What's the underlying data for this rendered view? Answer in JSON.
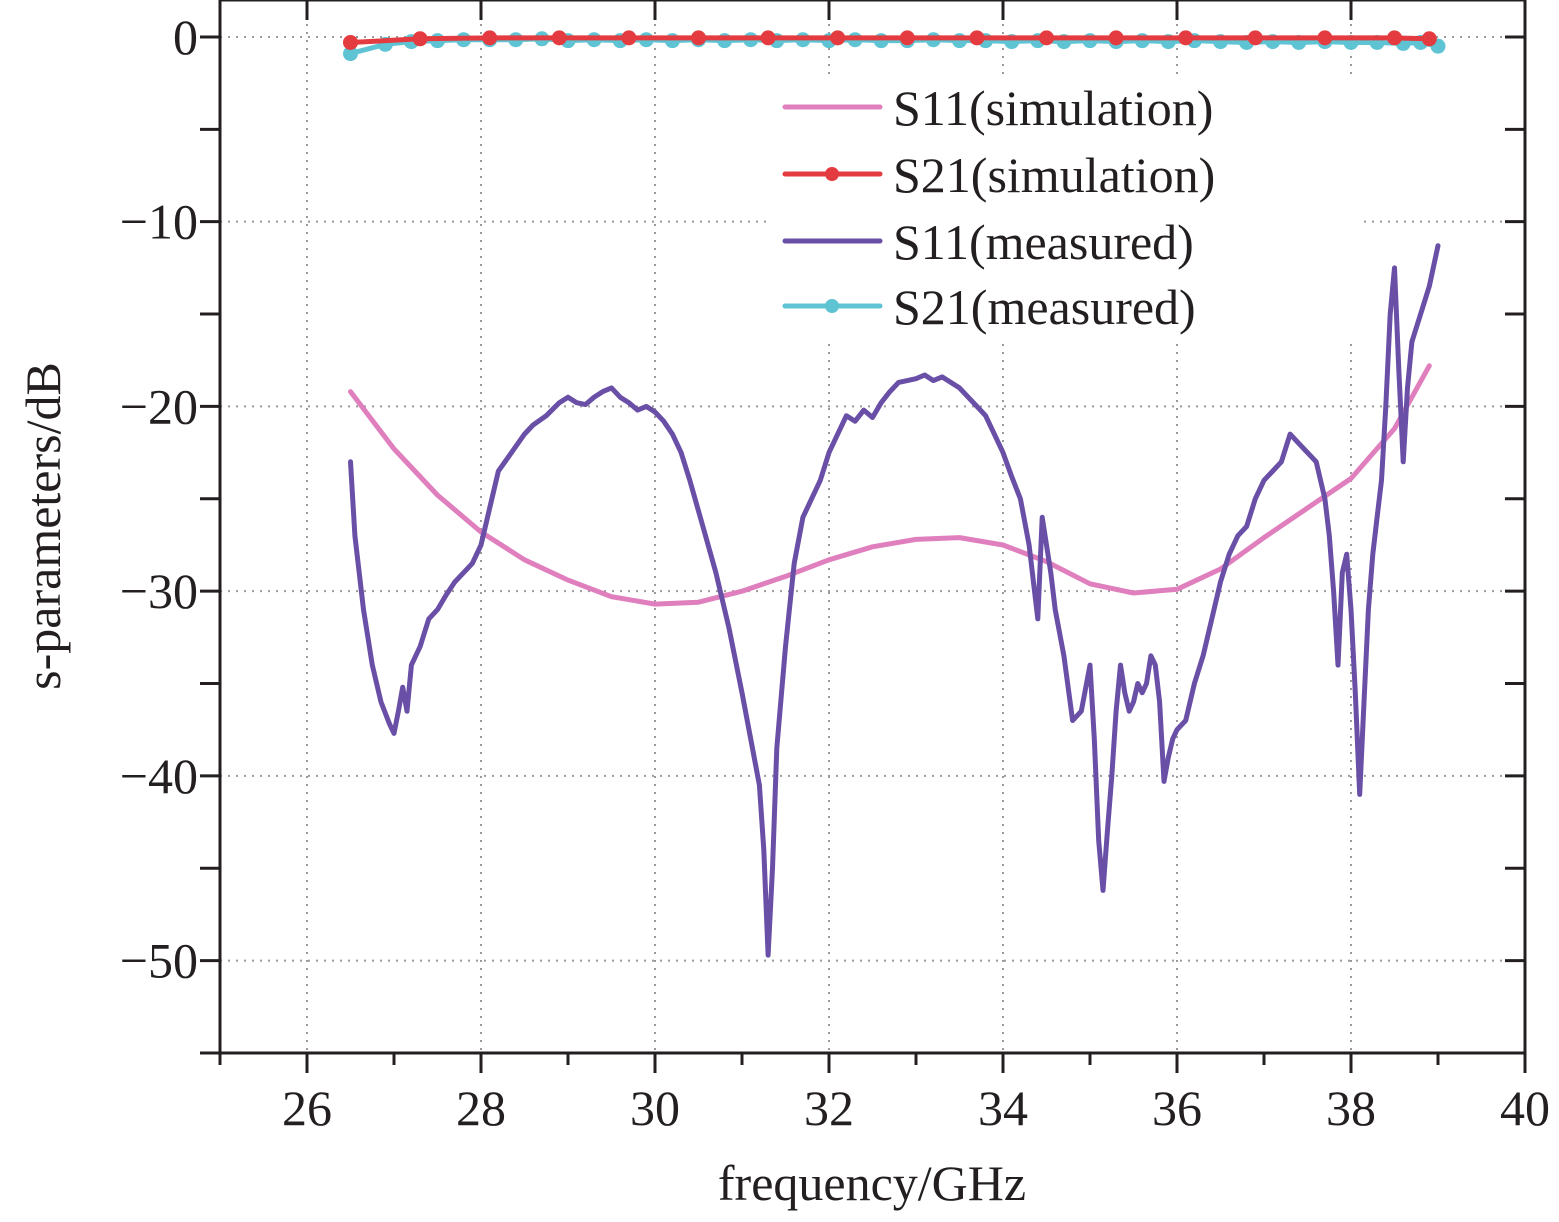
{
  "chart_data": {
    "type": "line",
    "title": "",
    "xlabel": "frequency/GHz",
    "ylabel": "s-parameters/dB",
    "xlim": [
      25,
      40
    ],
    "ylim": [
      -55,
      2
    ],
    "xticks": [
      26,
      28,
      30,
      32,
      34,
      36,
      38,
      40
    ],
    "yticks": [
      0,
      -10,
      -20,
      -30,
      -40,
      -50
    ],
    "ytick_labels": [
      "0",
      "−10",
      "−20",
      "−30",
      "−40",
      "−50"
    ],
    "grid": true,
    "legend_position": "top-right",
    "series": [
      {
        "name": "S11(simulation)",
        "color": "#e07fbd",
        "marker": "none",
        "x": [
          26.5,
          27.0,
          27.5,
          28.0,
          28.5,
          29.0,
          29.5,
          30.0,
          30.5,
          31.0,
          31.5,
          32.0,
          32.5,
          33.0,
          33.5,
          34.0,
          34.5,
          35.0,
          35.5,
          36.0,
          36.5,
          37.0,
          37.5,
          38.0,
          38.5,
          38.9
        ],
        "y": [
          -19.2,
          -22.3,
          -24.8,
          -26.8,
          -28.3,
          -29.4,
          -30.3,
          -30.7,
          -30.6,
          -30.0,
          -29.2,
          -28.3,
          -27.6,
          -27.2,
          -27.1,
          -27.5,
          -28.4,
          -29.6,
          -30.1,
          -29.9,
          -28.8,
          -27.1,
          -25.5,
          -23.9,
          -21.2,
          -17.8
        ]
      },
      {
        "name": "S21(simulation)",
        "color": "#e33b3f",
        "marker": "circle",
        "x": [
          26.5,
          27.3,
          28.1,
          28.9,
          29.7,
          30.5,
          31.3,
          32.1,
          32.9,
          33.7,
          34.5,
          35.3,
          36.1,
          36.9,
          37.7,
          38.5,
          38.9
        ],
        "y": [
          -0.3,
          -0.1,
          -0.05,
          -0.05,
          -0.05,
          -0.05,
          -0.05,
          -0.05,
          -0.05,
          -0.05,
          -0.05,
          -0.05,
          -0.05,
          -0.05,
          -0.05,
          -0.05,
          -0.1
        ]
      },
      {
        "name": "S11(measured)",
        "color": "#6a4fa7",
        "marker": "none",
        "x": [
          26.5,
          26.55,
          26.65,
          26.75,
          26.85,
          26.95,
          27.0,
          27.05,
          27.1,
          27.15,
          27.2,
          27.3,
          27.4,
          27.5,
          27.6,
          27.7,
          27.8,
          27.9,
          28.0,
          28.1,
          28.2,
          28.35,
          28.5,
          28.6,
          28.75,
          28.9,
          29.0,
          29.1,
          29.2,
          29.3,
          29.4,
          29.5,
          29.6,
          29.7,
          29.8,
          29.9,
          30.0,
          30.1,
          30.2,
          30.3,
          30.4,
          30.55,
          30.7,
          30.85,
          31.0,
          31.1,
          31.2,
          31.25,
          31.3,
          31.35,
          31.4,
          31.5,
          31.6,
          31.7,
          31.8,
          31.9,
          32.0,
          32.1,
          32.2,
          32.3,
          32.4,
          32.5,
          32.6,
          32.7,
          32.8,
          32.9,
          33.0,
          33.1,
          33.2,
          33.3,
          33.4,
          33.5,
          33.6,
          33.7,
          33.8,
          33.9,
          34.0,
          34.1,
          34.2,
          34.3,
          34.4,
          34.45,
          34.5,
          34.55,
          34.6,
          34.7,
          34.8,
          34.9,
          35.0,
          35.05,
          35.1,
          35.15,
          35.2,
          35.25,
          35.3,
          35.35,
          35.4,
          35.45,
          35.5,
          35.55,
          35.6,
          35.65,
          35.7,
          35.75,
          35.8,
          35.85,
          35.9,
          35.95,
          36.0,
          36.1,
          36.2,
          36.3,
          36.4,
          36.5,
          36.6,
          36.7,
          36.8,
          36.9,
          37.0,
          37.1,
          37.2,
          37.3,
          37.4,
          37.5,
          37.6,
          37.7,
          37.75,
          37.8,
          37.85,
          37.9,
          37.95,
          38.0,
          38.05,
          38.1,
          38.15,
          38.2,
          38.25,
          38.3,
          38.35,
          38.4,
          38.45,
          38.5,
          38.55,
          38.6,
          38.65,
          38.7,
          38.8,
          38.9,
          39.0
        ],
        "y": [
          -23.0,
          -27.0,
          -31.0,
          -34.0,
          -36.0,
          -37.2,
          -37.7,
          -36.5,
          -35.2,
          -36.5,
          -34.0,
          -33.0,
          -31.5,
          -31.0,
          -30.2,
          -29.5,
          -29.0,
          -28.5,
          -27.5,
          -25.5,
          -23.5,
          -22.5,
          -21.5,
          -21.0,
          -20.5,
          -19.8,
          -19.5,
          -19.8,
          -19.9,
          -19.5,
          -19.2,
          -19.0,
          -19.5,
          -19.8,
          -20.2,
          -20.0,
          -20.3,
          -20.8,
          -21.5,
          -22.5,
          -24.0,
          -26.5,
          -29.0,
          -32.0,
          -35.5,
          -38.0,
          -40.5,
          -44.0,
          -49.7,
          -45.0,
          -38.5,
          -33.0,
          -28.5,
          -26.0,
          -25.0,
          -24.0,
          -22.5,
          -21.5,
          -20.5,
          -20.8,
          -20.2,
          -20.6,
          -19.8,
          -19.2,
          -18.7,
          -18.6,
          -18.5,
          -18.3,
          -18.6,
          -18.4,
          -18.7,
          -19.0,
          -19.5,
          -20.0,
          -20.5,
          -21.5,
          -22.5,
          -23.8,
          -25.0,
          -27.5,
          -31.5,
          -26.0,
          -27.5,
          -29.0,
          -31.0,
          -33.5,
          -37.0,
          -36.5,
          -34.0,
          -38.0,
          -43.5,
          -46.2,
          -43.0,
          -40.0,
          -36.5,
          -34.0,
          -35.5,
          -36.5,
          -36.0,
          -35.0,
          -35.5,
          -35.0,
          -33.5,
          -34.0,
          -36.0,
          -40.3,
          -39.0,
          -38.0,
          -37.5,
          -37.0,
          -35.0,
          -33.5,
          -31.5,
          -29.5,
          -28.0,
          -27.0,
          -26.5,
          -25.0,
          -24.0,
          -23.5,
          -23.0,
          -21.5,
          -22.0,
          -22.5,
          -23.0,
          -25.0,
          -27.0,
          -30.0,
          -34.0,
          -29.0,
          -28.0,
          -31.0,
          -35.5,
          -41.0,
          -36.0,
          -31.0,
          -28.0,
          -26.0,
          -24.0,
          -20.0,
          -15.0,
          -12.5,
          -18.0,
          -23.0,
          -19.0,
          -16.5,
          -15.0,
          -13.5,
          -11.3
        ]
      },
      {
        "name": "S21(measured)",
        "color": "#5ec3d3",
        "marker": "circle",
        "x": [
          26.5,
          26.9,
          27.2,
          27.5,
          27.8,
          28.1,
          28.4,
          28.7,
          29.0,
          29.3,
          29.6,
          29.9,
          30.2,
          30.5,
          30.8,
          31.1,
          31.4,
          31.7,
          32.0,
          32.3,
          32.6,
          32.9,
          33.2,
          33.5,
          33.8,
          34.1,
          34.4,
          34.7,
          35.0,
          35.3,
          35.6,
          35.9,
          36.2,
          36.5,
          36.8,
          37.1,
          37.4,
          37.7,
          38.0,
          38.3,
          38.6,
          38.8,
          39.0
        ],
        "y": [
          -0.9,
          -0.4,
          -0.25,
          -0.2,
          -0.15,
          -0.15,
          -0.15,
          -0.1,
          -0.2,
          -0.15,
          -0.2,
          -0.15,
          -0.2,
          -0.15,
          -0.2,
          -0.15,
          -0.2,
          -0.15,
          -0.2,
          -0.15,
          -0.2,
          -0.2,
          -0.15,
          -0.2,
          -0.2,
          -0.25,
          -0.2,
          -0.25,
          -0.2,
          -0.25,
          -0.2,
          -0.25,
          -0.2,
          -0.25,
          -0.3,
          -0.25,
          -0.3,
          -0.25,
          -0.3,
          -0.3,
          -0.35,
          -0.3,
          -0.5
        ]
      }
    ]
  }
}
